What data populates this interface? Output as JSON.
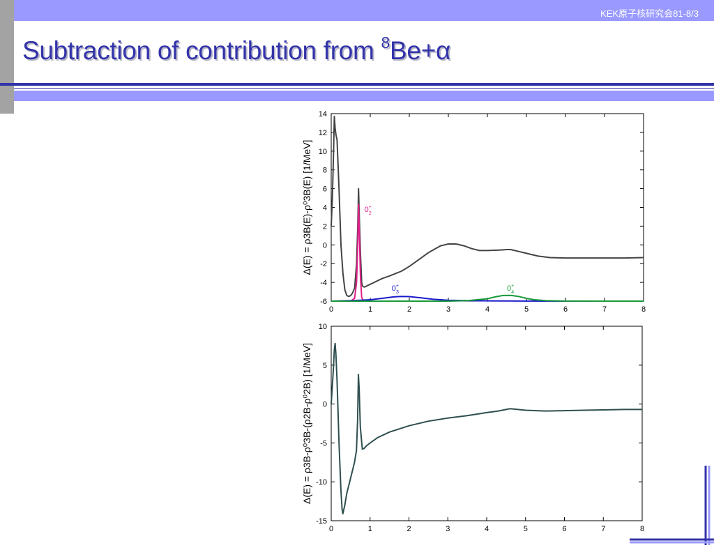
{
  "header": {
    "tag": "KEK原子核研究会81-8/3"
  },
  "title": {
    "main": "Subtraction of contribution from ",
    "sup": "8",
    "rest": "Be+α"
  },
  "chart_data": [
    {
      "type": "line",
      "ylabel": "Δ(E) = ρ3B(E)-ρ⁰3B(E)  [1/MeV]",
      "xlim": [
        0,
        8
      ],
      "ylim": [
        -6,
        14
      ],
      "xticks": [
        "0",
        "1",
        "2",
        "3",
        "4",
        "5",
        "6",
        "7",
        "8"
      ],
      "yticks": [
        "-6",
        "-4",
        "-2",
        "0",
        "2",
        "4",
        "6",
        "8",
        "10",
        "12",
        "14"
      ],
      "series": [
        {
          "color": "#444444",
          "x": [
            0,
            0.03,
            0.06,
            0.08,
            0.1,
            0.12,
            0.15,
            0.2,
            0.25,
            0.3,
            0.35,
            0.4,
            0.45,
            0.5,
            0.55,
            0.6,
            0.65,
            0.68,
            0.7,
            0.72,
            0.75,
            0.78,
            0.8,
            0.85,
            0.9,
            1.0,
            1.1,
            1.3,
            1.5,
            1.8,
            2.0,
            2.2,
            2.5,
            2.8,
            3.0,
            3.2,
            3.4,
            3.6,
            3.8,
            4.0,
            4.3,
            4.5,
            4.6,
            4.8,
            5.0,
            5.3,
            5.6,
            6.0,
            6.5,
            7.0,
            7.5,
            8.0
          ],
          "y": [
            2,
            5,
            10,
            13.7,
            12.5,
            11.8,
            11.2,
            6,
            0,
            -3,
            -4.8,
            -5.4,
            -5.5,
            -5.4,
            -5.1,
            -4.6,
            -2,
            2,
            6,
            3,
            -1,
            -4,
            -4.4,
            -4.5,
            -4.4,
            -4.2,
            -4,
            -3.6,
            -3.3,
            -2.8,
            -2.3,
            -1.7,
            -0.8,
            -0.1,
            0.1,
            0.1,
            -0.1,
            -0.4,
            -0.6,
            -0.6,
            -0.55,
            -0.5,
            -0.5,
            -0.7,
            -0.9,
            -1.2,
            -1.35,
            -1.4,
            -1.4,
            -1.4,
            -1.4,
            -1.35
          ]
        },
        {
          "name": "0₂⁺",
          "color": "#e0208a",
          "x": [
            0.3,
            0.5,
            0.6,
            0.65,
            0.68,
            0.7,
            0.72,
            0.75,
            0.78,
            0.82,
            0.9,
            1.0
          ],
          "y": [
            -6,
            -6,
            -5.7,
            -4,
            0,
            4.3,
            1.5,
            -3.5,
            -5.6,
            -5.9,
            -6,
            -6
          ]
        },
        {
          "name": "0₃⁺",
          "color": "#1a1acc",
          "x": [
            0,
            0.5,
            1.0,
            1.3,
            1.6,
            1.8,
            2.0,
            2.3,
            2.6,
            3.0,
            3.5,
            4.0,
            5.0,
            6.0,
            8.0
          ],
          "y": [
            -6,
            -5.95,
            -5.85,
            -5.7,
            -5.55,
            -5.5,
            -5.52,
            -5.65,
            -5.8,
            -5.9,
            -5.95,
            -5.97,
            -5.99,
            -6,
            -6
          ]
        },
        {
          "name": "0₄⁺",
          "color": "#1a9a3a",
          "x": [
            0,
            3.0,
            3.5,
            4.0,
            4.2,
            4.4,
            4.6,
            4.8,
            5.0,
            5.2,
            5.5,
            6.0,
            7.0,
            8.0
          ],
          "y": [
            -6,
            -6,
            -5.95,
            -5.75,
            -5.55,
            -5.4,
            -5.38,
            -5.5,
            -5.7,
            -5.85,
            -5.95,
            -5.99,
            -6,
            -6
          ]
        }
      ],
      "annotations": [
        {
          "text": "0",
          "sub": "2",
          "sup": "+",
          "x": 0.85,
          "y": 3.5,
          "color": "#e0208a"
        },
        {
          "text": "0",
          "sub": "3",
          "sup": "+",
          "x": 1.55,
          "y": -4.9,
          "color": "#1a1acc"
        },
        {
          "text": "0",
          "sub": "4",
          "sup": "+",
          "x": 4.5,
          "y": -4.9,
          "color": "#1a9a3a"
        }
      ]
    },
    {
      "type": "line",
      "ylabel": "Δ(E) = ρ3B-ρ⁰3B-(ρ2B-ρ⁰2B) [1/MeV]",
      "xlim": [
        0,
        8
      ],
      "ylim": [
        -15,
        10
      ],
      "xticks": [
        "0",
        "1",
        "2",
        "3",
        "4",
        "5",
        "6",
        "7",
        "8"
      ],
      "yticks": [
        "-15",
        "-10",
        "-5",
        "0",
        "5",
        "10"
      ],
      "series": [
        {
          "color": "#2f4f4f",
          "x": [
            0,
            0.05,
            0.08,
            0.1,
            0.12,
            0.15,
            0.2,
            0.25,
            0.28,
            0.3,
            0.35,
            0.4,
            0.5,
            0.6,
            0.65,
            0.68,
            0.7,
            0.72,
            0.75,
            0.8,
            0.85,
            0.9,
            1.0,
            1.2,
            1.5,
            2.0,
            2.5,
            3.0,
            3.5,
            4.0,
            4.3,
            4.5,
            4.6,
            4.8,
            5.0,
            5.5,
            6.0,
            6.5,
            7.0,
            7.5,
            8.0
          ],
          "y": [
            0,
            4,
            7,
            7.8,
            6.5,
            3,
            -5,
            -11,
            -13.5,
            -14.1,
            -13,
            -11.5,
            -9.5,
            -7.5,
            -6,
            -2,
            3.8,
            2,
            -3,
            -5.8,
            -5.7,
            -5.4,
            -5,
            -4.3,
            -3.6,
            -2.8,
            -2.2,
            -1.8,
            -1.5,
            -1.1,
            -0.9,
            -0.7,
            -0.6,
            -0.7,
            -0.8,
            -0.9,
            -0.85,
            -0.8,
            -0.75,
            -0.7,
            -0.7
          ]
        }
      ]
    }
  ]
}
